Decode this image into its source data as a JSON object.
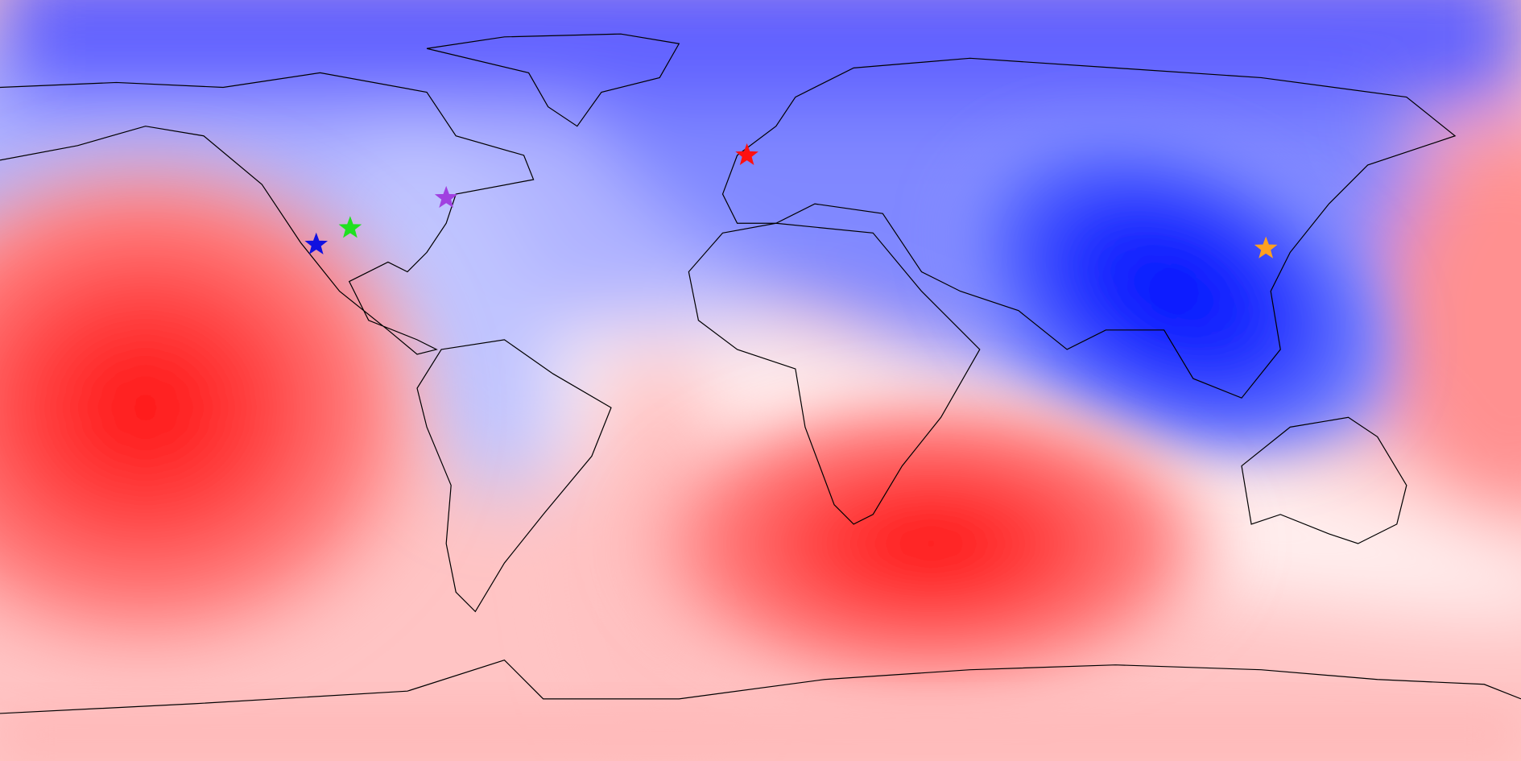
{
  "markers": [
    {
      "color": "#ff1010"
    },
    {
      "color": "#a040e0"
    },
    {
      "color": "#20e020"
    },
    {
      "color": "#1010e0"
    },
    {
      "color": "#ffa020"
    }
  ]
}
